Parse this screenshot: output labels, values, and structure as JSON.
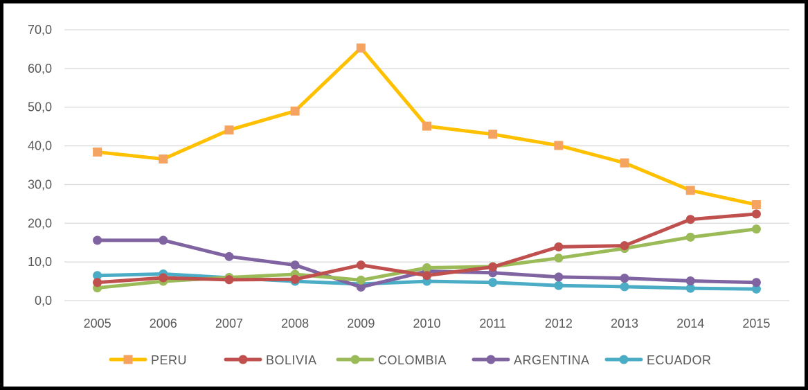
{
  "chart_data": {
    "type": "line",
    "title": "",
    "xlabel": "",
    "ylabel": "",
    "ylim": [
      0,
      70
    ],
    "yticks": [
      "0,0",
      "10,0",
      "20,0",
      "30,0",
      "40,0",
      "50,0",
      "60,0",
      "70,0"
    ],
    "categories": [
      "2005",
      "2006",
      "2007",
      "2008",
      "2009",
      "2010",
      "2011",
      "2012",
      "2013",
      "2014",
      "2015"
    ],
    "grid": true,
    "legend_position": "bottom",
    "series": [
      {
        "name": "PERU",
        "color": "#FFC000",
        "marker": "square",
        "marker_color": "#F4A460",
        "values": [
          38.4,
          36.6,
          44.1,
          49.0,
          65.3,
          45.1,
          43.0,
          40.1,
          35.6,
          28.5,
          24.8
        ]
      },
      {
        "name": "BOLIVIA",
        "color": "#C0504D",
        "marker": "circle",
        "marker_color": "#C0504D",
        "values": [
          4.7,
          5.9,
          5.4,
          5.5,
          9.2,
          6.5,
          8.7,
          13.9,
          14.2,
          21.0,
          22.4
        ]
      },
      {
        "name": "COLOMBIA",
        "color": "#9BBB59",
        "marker": "circle",
        "marker_color": "#9BBB59",
        "values": [
          3.3,
          5.0,
          6.0,
          6.8,
          5.3,
          8.5,
          8.8,
          11.0,
          13.5,
          16.4,
          18.5
        ]
      },
      {
        "name": "ARGENTINA",
        "color": "#8064A2",
        "marker": "circle",
        "marker_color": "#8064A2",
        "values": [
          15.6,
          15.6,
          11.4,
          9.2,
          3.5,
          7.6,
          7.2,
          6.1,
          5.8,
          5.1,
          4.7
        ]
      },
      {
        "name": "ECUADOR",
        "color": "#4BACC6",
        "marker": "circle",
        "marker_color": "#4BACC6",
        "values": [
          6.5,
          6.9,
          5.9,
          5.0,
          4.3,
          5.0,
          4.7,
          3.9,
          3.6,
          3.2,
          3.0
        ]
      }
    ]
  }
}
